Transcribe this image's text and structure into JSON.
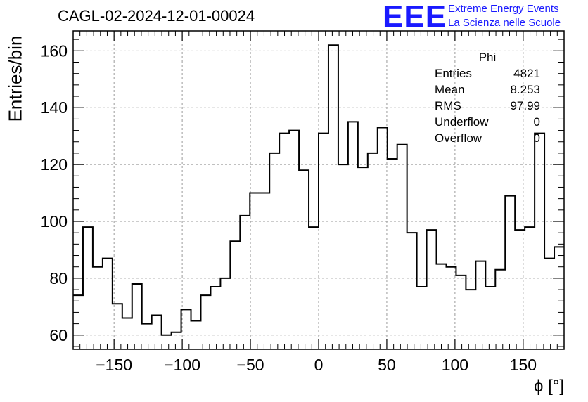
{
  "title": "CAGL-02-2024-12-01-00024",
  "logo": {
    "mark": "EEE",
    "line1": "Extreme Energy Events",
    "line2": "La Scienza nelle Scuole",
    "color": "#1a1aff"
  },
  "stats": {
    "name": "Phi",
    "rows": [
      {
        "label": "Entries",
        "value": "4821"
      },
      {
        "label": "Mean",
        "value": "8.253"
      },
      {
        "label": "RMS",
        "value": "97.99"
      },
      {
        "label": "Underflow",
        "value": "0"
      },
      {
        "label": "Overflow",
        "value": "0"
      }
    ]
  },
  "chart_data": {
    "type": "histogram",
    "title": "CAGL-02-2024-12-01-00024",
    "xlabel": "ϕ [°]",
    "ylabel": "Entries/bin",
    "xlim": [
      -180,
      180
    ],
    "ylim": [
      55,
      167
    ],
    "bin_width": 7.2,
    "xticks": [
      -150,
      -100,
      -50,
      0,
      50,
      100,
      150
    ],
    "xtick_labels": [
      "−150",
      "−100",
      "−50",
      "0",
      "50",
      "100",
      "150"
    ],
    "yticks": [
      60,
      80,
      100,
      120,
      140,
      160
    ],
    "grid": true,
    "legend": "stats box top-right",
    "values": [
      74,
      98,
      84,
      87,
      71,
      66,
      78,
      64,
      67,
      60,
      61,
      69,
      65,
      74,
      77,
      80,
      93,
      102,
      110,
      110,
      124,
      131,
      132,
      118,
      98,
      131,
      162,
      120,
      135,
      119,
      124,
      133,
      122,
      127,
      96,
      77,
      97,
      85,
      84,
      81,
      76,
      86,
      77,
      83,
      109,
      97,
      98,
      131,
      87,
      91
    ]
  }
}
